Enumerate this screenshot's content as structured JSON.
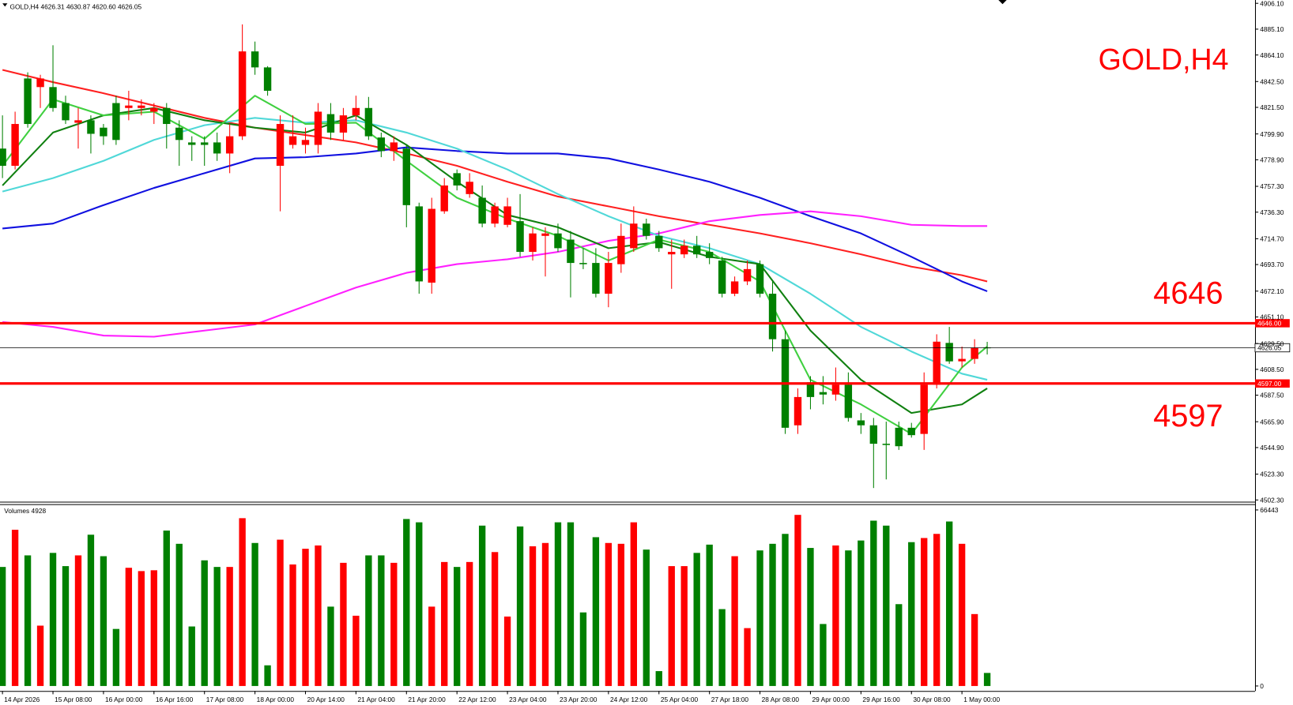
{
  "chart_data": {
    "type": "candlestick",
    "header": "GOLD,H4  4626.31 4630.87 4620.60 4626.05",
    "title": "GOLD,H4",
    "volume_title": "Volumes",
    "up_color": "#ff0000",
    "down_color": "#008000",
    "categories": [
      "14 Apr 2026",
      null,
      null,
      null,
      "15 Apr 08:00",
      null,
      null,
      null,
      "16 Apr 00:00",
      null,
      null,
      null,
      "16 Apr 16:00",
      null,
      null,
      null,
      "17 Apr 08:00",
      null,
      null,
      null,
      "18 Apr 00:00",
      null,
      null,
      null,
      "20 Apr 14:00",
      null,
      null,
      null,
      "21 Apr 04:00",
      null,
      null,
      null,
      "21 Apr 20:00",
      null,
      null,
      null,
      "22 Apr 12:00",
      null,
      null,
      null,
      "23 Apr 04:00",
      null,
      null,
      null,
      "23 Apr 20:00",
      null,
      null,
      null,
      "24 Apr 12:00",
      null,
      null,
      null,
      "25 Apr 04:00",
      null,
      null,
      null,
      "27 Apr 18:00",
      null,
      null,
      null,
      "28 Apr 08:00",
      null,
      null,
      null,
      "29 Apr 00:00",
      null,
      null,
      null,
      "29 Apr 16:00",
      null,
      null,
      null,
      "30 Apr 08:00",
      null,
      null,
      null,
      "1 May 00:00",
      null,
      null
    ],
    "open": [
      4788,
      4774,
      4845,
      4838,
      4838,
      4825,
      4809,
      4811,
      4805,
      4825,
      4821,
      4821,
      4818,
      4821,
      4805,
      4793,
      4793,
      4793,
      4784,
      4798,
      4867,
      4854,
      4774,
      4791,
      4791,
      4791,
      4816,
      4801,
      4815,
      4821,
      4797,
      4786,
      4788,
      4741,
      4679,
      4737,
      4768,
      4751,
      4748,
      4727,
      4726,
      4729,
      4704,
      4717,
      4719,
      4714,
      4695,
      4695,
      4670,
      4694,
      4707,
      4727,
      4717,
      4702,
      4702,
      4709,
      4704,
      4697,
      4670,
      4680,
      4694,
      4670,
      4633,
      4563,
      4598,
      4590,
      4588,
      4596,
      4567,
      4563,
      4548,
      4561,
      4561,
      4556,
      4596,
      4630,
      4615,
      4617,
      4626.31
    ],
    "high": [
      4815,
      4818,
      4850,
      4848,
      4872,
      4831,
      4821,
      4815,
      4808,
      4831,
      4835,
      4828,
      4825,
      4825,
      4811,
      4798,
      4798,
      4801,
      4808,
      4889,
      4875,
      4855,
      4815,
      4815,
      4805,
      4825,
      4825,
      4821,
      4831,
      4830,
      4801,
      4798,
      4791,
      4744,
      4748,
      4764,
      4771,
      4768,
      4758,
      4744,
      4748,
      4751,
      4724,
      4724,
      4727,
      4721,
      4707,
      4707,
      4704,
      4727,
      4741,
      4731,
      4721,
      4714,
      4714,
      4717,
      4711,
      4700,
      4684,
      4697,
      4697,
      4680,
      4640,
      4593,
      4603,
      4603,
      4610,
      4606,
      4573,
      4569,
      4566,
      4566,
      4565,
      4606,
      4637,
      4643,
      4627,
      4633,
      4630.87
    ],
    "low": [
      4764,
      4771,
      4805,
      4821,
      4818,
      4808,
      4788,
      4784,
      4791,
      4791,
      4811,
      4815,
      4808,
      4788,
      4774,
      4778,
      4774,
      4778,
      4768,
      4795,
      4848,
      4831,
      4737,
      4788,
      4784,
      4784,
      4795,
      4795,
      4811,
      4795,
      4781,
      4778,
      4724,
      4670,
      4670,
      4735,
      4754,
      4748,
      4724,
      4724,
      4724,
      4700,
      4697,
      4684,
      4704,
      4667,
      4690,
      4667,
      4659,
      4687,
      4704,
      4714,
      4704,
      4674,
      4699,
      4699,
      4694,
      4667,
      4668,
      4677,
      4667,
      4623,
      4556,
      4556,
      4576,
      4580,
      4583,
      4566,
      4556,
      4512,
      4519,
      4543,
      4553,
      4543,
      4593,
      4613,
      4610,
      4613,
      4620.6
    ],
    "close": [
      4774,
      4808,
      4808,
      4845,
      4821,
      4811,
      4811,
      4800,
      4798,
      4795,
      4823,
      4823,
      4821,
      4808,
      4795,
      4791,
      4791,
      4784,
      4798,
      4867,
      4854,
      4835,
      4808,
      4798,
      4795,
      4818,
      4801,
      4815,
      4821,
      4798,
      4786,
      4793,
      4742,
      4680,
      4739,
      4758,
      4758,
      4761,
      4727,
      4741,
      4741,
      4704,
      4719,
      4719,
      4707,
      4695,
      4694,
      4670,
      4695,
      4717,
      4727,
      4717,
      4707,
      4704,
      4709,
      4702,
      4699,
      4670,
      4680,
      4690,
      4670,
      4633,
      4561,
      4586,
      4586,
      4588,
      4596,
      4569,
      4563,
      4548,
      4547,
      4546,
      4555,
      4596,
      4631,
      4615,
      4617,
      4626,
      4626.05
    ],
    "volumes": [
      44928,
      58968,
      49296,
      22776,
      50232,
      45240,
      49296,
      57096,
      48984,
      21528,
      44616,
      43368,
      43680,
      58656,
      53664,
      22464,
      47424,
      44928,
      44928,
      63336,
      53976,
      7800,
      55224,
      45864,
      51792,
      53040,
      29952,
      46488,
      26520,
      49296,
      49296,
      46488,
      63024,
      61776,
      29952,
      46800,
      44928,
      46800,
      60528,
      50544,
      26208,
      60216,
      52728,
      53976,
      61776,
      61776,
      27768,
      56160,
      53976,
      53664,
      61776,
      51480,
      5616,
      45240,
      45240,
      50232,
      53352,
      29016,
      48984,
      21840,
      51168,
      53664,
      57408,
      64584,
      52104,
      23400,
      53040,
      51168,
      54912,
      62400,
      60528,
      30888,
      54288,
      55848,
      57408,
      62088,
      53664,
      27144,
      4928
    ],
    "line_x": [
      0,
      4,
      8,
      12,
      16,
      20,
      24,
      28,
      32,
      36,
      40,
      44,
      48,
      52,
      56,
      60,
      64,
      68,
      72,
      76,
      78
    ],
    "lines": [
      {
        "color": "#ff2020",
        "values": [
          4852,
          4842,
          4833,
          4823,
          4813,
          4805,
          4799,
          4793,
          4784,
          4774,
          4761,
          4749,
          4741,
          4733,
          4726,
          4719,
          4711,
          4702,
          4692,
          4685,
          4680
        ]
      },
      {
        "color": "#1010e0",
        "values": [
          4723,
          4727,
          4742,
          4756,
          4768,
          4780,
          4781,
          4784,
          4789,
          4786,
          4784,
          4784,
          4780,
          4771,
          4761,
          4748,
          4733,
          4719,
          4700,
          4680,
          4672
        ]
      },
      {
        "color": "#ff20ff",
        "values": [
          4647,
          4643,
          4636,
          4635,
          4640,
          4645,
          4660,
          4675,
          4687,
          4694,
          4698,
          4704,
          4713,
          4719,
          4729,
          4734,
          4737,
          4733,
          4726,
          4725,
          4725
        ]
      },
      {
        "color": "#50d8d8",
        "values": [
          4753,
          4764,
          4778,
          4795,
          4807,
          4813,
          4809,
          4811,
          4801,
          4788,
          4771,
          4751,
          4733,
          4717,
          4707,
          4694,
          4670,
          4643,
          4623,
          4605,
          4600
        ]
      },
      {
        "color": "#108010",
        "values": [
          4758,
          4801,
          4815,
          4821,
          4811,
          4805,
          4801,
          4815,
          4791,
          4761,
          4734,
          4724,
          4707,
          4712,
          4700,
          4694,
          4640,
          4600,
          4573,
          4580,
          4593
        ]
      },
      {
        "color": "#40d040",
        "values": [
          4774,
          4828,
          4815,
          4818,
          4796,
          4831,
          4808,
          4809,
          4778,
          4748,
          4731,
          4717,
          4697,
          4714,
          4704,
          4680,
          4600,
          4580,
          4556,
          4610,
          4627
        ]
      }
    ],
    "levels": [
      {
        "value": 4646,
        "label": "4646.00"
      },
      {
        "value": 4597,
        "label": "4597.00"
      }
    ],
    "level_color": "#ff0000",
    "current_price": 4626.05,
    "ylim": [
      4500.9,
      4908.8
    ],
    "yticks": [
      {
        "value": 4906.1,
        "label": "4906.10"
      },
      {
        "value": 4885.1,
        "label": "4885.10"
      },
      {
        "value": 4864.1,
        "label": "4864.10"
      },
      {
        "value": 4842.5,
        "label": "4842.50"
      },
      {
        "value": 4821.5,
        "label": "4821.50"
      },
      {
        "value": 4799.9,
        "label": "4799.90"
      },
      {
        "value": 4778.9,
        "label": "4778.90"
      },
      {
        "value": 4757.3,
        "label": "4757.30"
      },
      {
        "value": 4736.3,
        "label": "4736.30"
      },
      {
        "value": 4714.7,
        "label": "4714.70"
      },
      {
        "value": 4693.7,
        "label": "4693.70"
      },
      {
        "value": 4672.1,
        "label": "4672.10"
      },
      {
        "value": 4651.1,
        "label": "4651.10"
      },
      {
        "value": 4629.5,
        "label": "4629.50"
      },
      {
        "value": 4608.5,
        "label": "4608.50"
      },
      {
        "value": 4587.5,
        "label": "4587.50"
      },
      {
        "value": 4565.9,
        "label": "4565.90"
      },
      {
        "value": 4544.9,
        "label": "4544.90"
      },
      {
        "value": 4523.3,
        "label": "4523.30"
      },
      {
        "value": 4502.3,
        "label": "4502.30"
      }
    ],
    "vlim": [
      0,
      66443
    ],
    "vticks": [
      0,
      66443
    ]
  }
}
